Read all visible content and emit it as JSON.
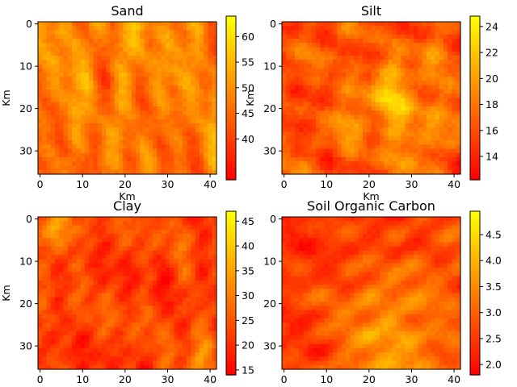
{
  "chart_data": [
    {
      "type": "heatmap",
      "title": "Sand",
      "xlabel": "Km",
      "ylabel": "Km",
      "x_ticks": [
        "0",
        "10",
        "20",
        "30",
        "40"
      ],
      "y_ticks": [
        "0",
        "10",
        "20",
        "30"
      ],
      "xlim": [
        -0.5,
        41.5
      ],
      "ylim": [
        35.5,
        -0.5
      ],
      "grid_shape": [
        36,
        42
      ],
      "colormap": "autumn",
      "colorbar": {
        "min": 32,
        "max": 64,
        "ticks": [
          "40",
          "45",
          "50",
          "55",
          "60"
        ]
      }
    },
    {
      "type": "heatmap",
      "title": "Silt",
      "xlabel": "Km",
      "ylabel": "Km",
      "x_ticks": [
        "0",
        "10",
        "20",
        "30",
        "40"
      ],
      "y_ticks": [
        "0",
        "10",
        "20",
        "30"
      ],
      "xlim": [
        -0.5,
        41.5
      ],
      "ylim": [
        35.5,
        -0.5
      ],
      "grid_shape": [
        36,
        42
      ],
      "colormap": "autumn",
      "colorbar": {
        "min": 12.2,
        "max": 24.8,
        "ticks": [
          "14",
          "16",
          "18",
          "20",
          "22",
          "24"
        ]
      }
    },
    {
      "type": "heatmap",
      "title": "Clay",
      "xlabel": "",
      "ylabel": "Km",
      "x_ticks": [
        "0",
        "10",
        "20",
        "30",
        "40"
      ],
      "y_ticks": [
        "0",
        "10",
        "20",
        "30"
      ],
      "xlim": [
        -0.5,
        41.5
      ],
      "ylim": [
        35.5,
        -0.5
      ],
      "grid_shape": [
        36,
        42
      ],
      "colormap": "autumn",
      "colorbar": {
        "min": 14,
        "max": 47,
        "ticks": [
          "15",
          "20",
          "25",
          "30",
          "35",
          "40",
          "45"
        ]
      }
    },
    {
      "type": "heatmap",
      "title": "Soil Organic Carbon",
      "xlabel": "",
      "ylabel": "",
      "x_ticks": [
        "0",
        "10",
        "20",
        "30",
        "40"
      ],
      "y_ticks": [
        "0",
        "10",
        "20",
        "30"
      ],
      "xlim": [
        -0.5,
        41.5
      ],
      "ylim": [
        35.5,
        -0.5
      ],
      "grid_shape": [
        36,
        42
      ],
      "colormap": "autumn",
      "colorbar": {
        "min": 1.8,
        "max": 4.95,
        "ticks": [
          "2.0",
          "2.5",
          "3.0",
          "3.5",
          "4.0",
          "4.5"
        ]
      }
    }
  ],
  "colors": {
    "colormap_low": "#ff0000",
    "colormap_high": "#ffff00",
    "axis": "#000000",
    "background": "#ffffff"
  }
}
